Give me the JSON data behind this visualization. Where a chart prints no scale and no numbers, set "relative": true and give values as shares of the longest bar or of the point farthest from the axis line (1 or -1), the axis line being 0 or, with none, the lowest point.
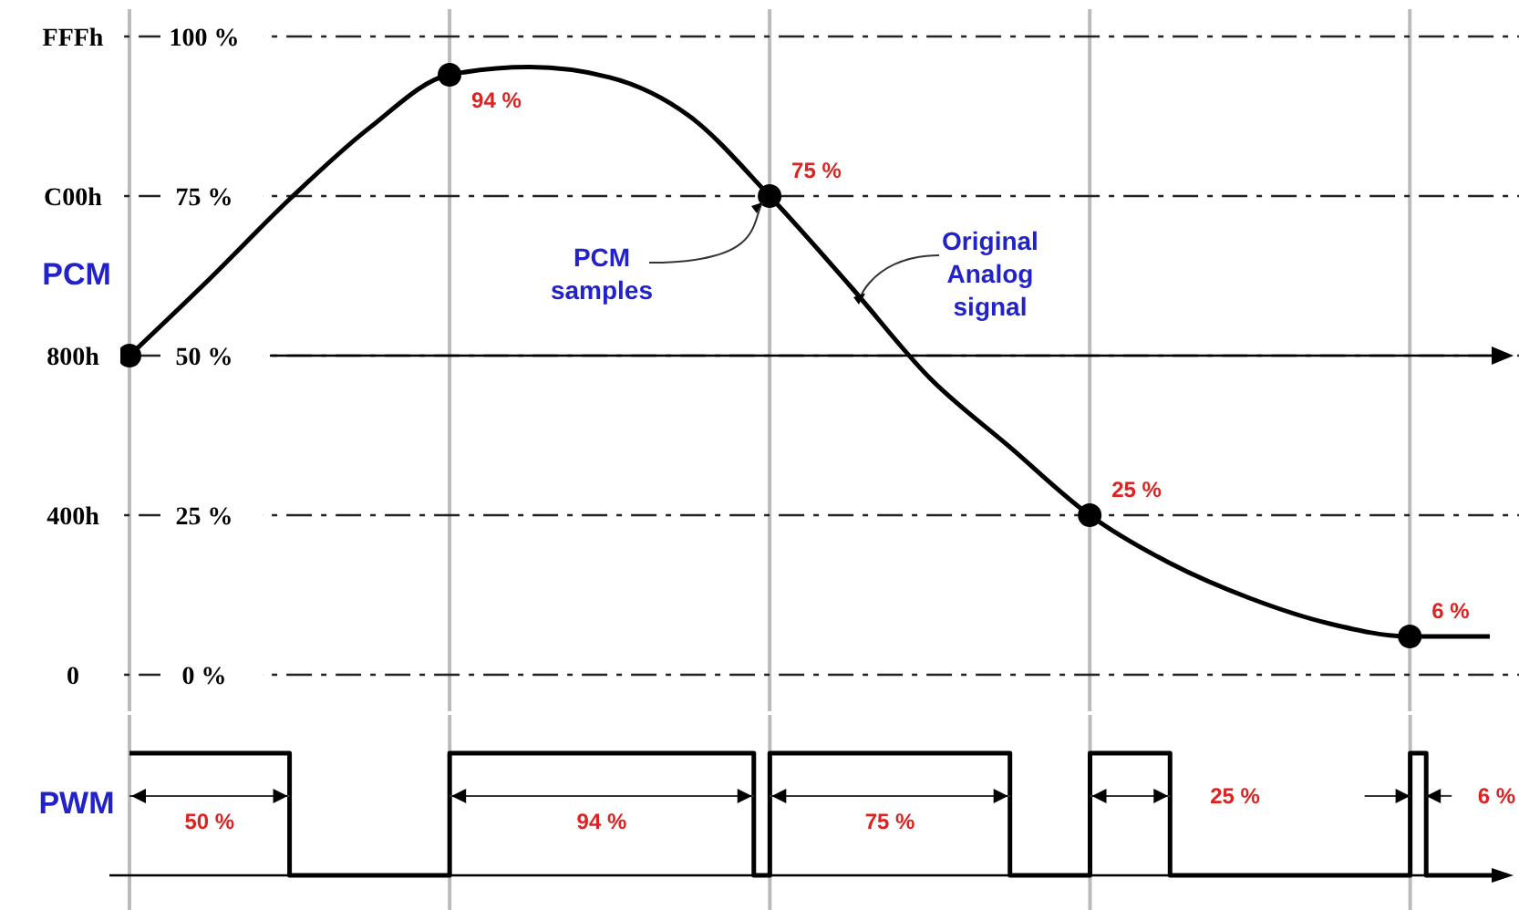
{
  "chart_data": [
    {
      "type": "line",
      "ylabel": "PCM",
      "categories": [
        null,
        null,
        null,
        null,
        null,
        null,
        null,
        null,
        null,
        null,
        null,
        null,
        null,
        null,
        null,
        null,
        null,
        null
      ],
      "ylim": [
        0,
        100
      ],
      "yticks": [
        {
          "value": 0,
          "label": "0 %"
        },
        {
          "value": 25,
          "label": "25 %"
        },
        {
          "value": 50,
          "label": "50 %"
        },
        {
          "value": 75,
          "label": "75 %"
        },
        {
          "value": 100,
          "label": "100 %"
        }
      ],
      "tick_labels": "y",
      "grid": true,
      "ref_lines": [
        {
          "axis": "y",
          "value": 50
        }
      ],
      "series": [
        {
          "color": "#000000",
          "values": [
            50,
            62,
            74.5,
            85.7,
            94,
            95.2,
            93.6,
            87.5,
            75,
            61,
            46.5,
            35.7,
            25,
            17.5,
            12,
            8,
            6,
            6
          ]
        },
        {
          "type": "scatter",
          "color": "#000000",
          "marker": "circle",
          "values": [
            50,
            null,
            null,
            null,
            94,
            null,
            null,
            null,
            75,
            null,
            null,
            null,
            25,
            null,
            null,
            null,
            6,
            null
          ],
          "value_labels": [
            null,
            null,
            null,
            null,
            "94 %",
            null,
            null,
            null,
            "75 %",
            null,
            null,
            null,
            "25 %",
            null,
            null,
            null,
            "6 %",
            null
          ]
        }
      ],
      "annotations": [
        "PCM\nsamples",
        "Original\nAnalog\nsignal",
        "FFFh",
        "C00h",
        "800h",
        "400h",
        "0"
      ]
    },
    {
      "type": "step",
      "ylabel": "PWM",
      "relative": true,
      "categories": [
        null,
        null,
        null,
        null,
        null,
        null,
        null,
        null,
        null,
        null,
        null,
        null,
        null,
        null,
        null,
        null,
        null,
        null,
        null,
        null,
        null,
        null,
        null,
        null,
        null,
        null,
        null,
        null,
        null,
        null,
        null,
        null,
        null,
        null,
        null,
        null,
        null,
        null,
        null,
        null,
        null,
        null,
        null,
        null,
        null,
        null,
        null,
        null,
        null,
        null,
        null,
        null,
        null,
        null,
        null,
        null,
        null,
        null,
        null,
        null,
        null,
        null,
        null,
        null,
        null,
        null,
        null,
        null,
        null,
        null,
        null,
        null,
        null,
        null,
        null,
        null,
        null,
        null,
        null,
        null,
        null,
        null,
        null,
        null,
        null,
        null,
        null
      ],
      "tick_labels": false,
      "grid": "x",
      "series": [
        {
          "color": "#000000",
          "values": [
            1,
            1,
            1,
            1,
            1,
            1,
            1,
            1,
            1,
            1,
            0,
            0,
            0,
            0,
            0,
            0,
            0,
            0,
            0,
            0,
            1,
            1,
            1,
            1,
            1,
            1,
            1,
            1,
            1,
            1,
            1,
            1,
            1,
            1,
            1,
            1,
            1,
            1,
            1,
            0,
            1,
            1,
            1,
            1,
            1,
            1,
            1,
            1,
            1,
            1,
            1,
            1,
            1,
            1,
            1,
            0,
            0,
            0,
            0,
            0,
            1,
            1,
            1,
            1,
            1,
            0,
            0,
            0,
            0,
            0,
            0,
            0,
            0,
            0,
            0,
            0,
            0,
            0,
            0,
            0,
            1,
            0,
            0,
            0,
            0,
            0,
            0
          ]
        }
      ],
      "annotations": [
        "50 %",
        "94 %",
        "75 %",
        "25 %",
        "6 %"
      ]
    }
  ]
}
